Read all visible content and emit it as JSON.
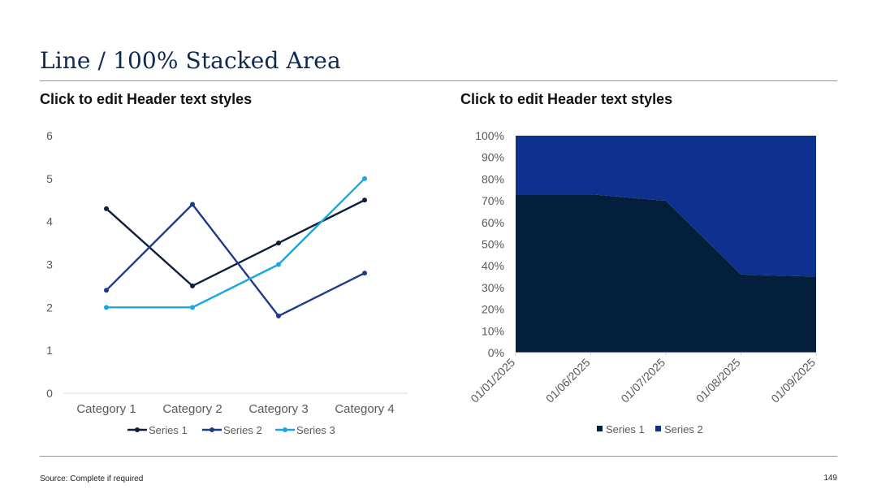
{
  "slide": {
    "title": "Line / 100% Stacked Area",
    "left_header": "Click to edit Header text styles",
    "right_header": "Click to edit Header text styles",
    "source": "Source: Complete if required",
    "page_number": "149"
  },
  "colors": {
    "title": "#0f2a52",
    "rule": "#8a9bb0",
    "axis_text": "#595959"
  },
  "chart_data": [
    {
      "type": "line",
      "categories": [
        "Category 1",
        "Category 2",
        "Category 3",
        "Category 4"
      ],
      "series": [
        {
          "name": "Series 1",
          "values": [
            4.3,
            2.5,
            3.5,
            4.5
          ],
          "color": "#0f1f3a"
        },
        {
          "name": "Series 2",
          "values": [
            2.4,
            4.4,
            1.8,
            2.8
          ],
          "color": "#1e3a8a"
        },
        {
          "name": "Series 3",
          "values": [
            2.0,
            2.0,
            3.0,
            5.0
          ],
          "color": "#1aa7e0"
        }
      ],
      "ylim": [
        0,
        6
      ],
      "yticks": [
        "0",
        "1",
        "2",
        "3",
        "4",
        "5",
        "6"
      ],
      "grid": false,
      "legend": "bottom",
      "markers": true
    },
    {
      "type": "area",
      "stacking": "percent",
      "x": [
        "01/01/2025",
        "01/06/2025",
        "01/07/2025",
        "01/08/2025",
        "01/09/2025"
      ],
      "series": [
        {
          "name": "Series 1",
          "values": [
            73,
            73,
            70,
            36,
            35
          ],
          "color": "#041f3b"
        },
        {
          "name": "Series 2",
          "values": [
            27,
            27,
            30,
            64,
            65
          ],
          "color": "#0e3190"
        }
      ],
      "ylim": [
        0,
        100
      ],
      "yticks": [
        "0%",
        "10%",
        "20%",
        "30%",
        "40%",
        "50%",
        "60%",
        "70%",
        "80%",
        "90%",
        "100%"
      ],
      "grid": false,
      "legend": "bottom"
    }
  ]
}
